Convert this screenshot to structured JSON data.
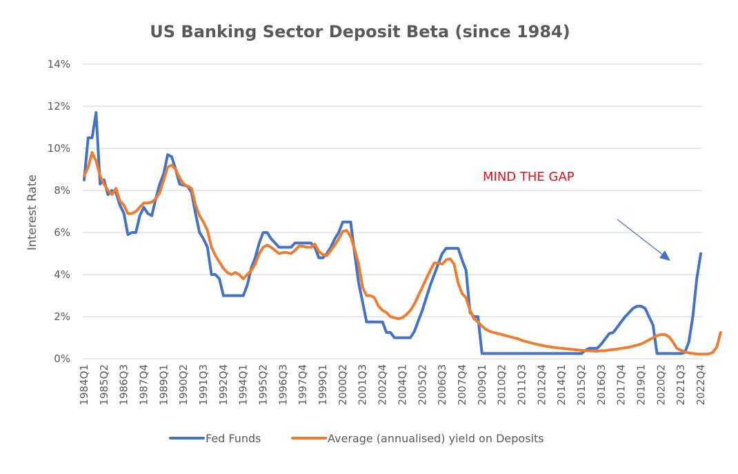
{
  "chart_data": {
    "type": "line",
    "title": "US Banking Sector Deposit Beta (since 1984)",
    "xlabel": "",
    "ylabel": "Interest Rate",
    "ylim": [
      0,
      14
    ],
    "y_ticks": [
      "0%",
      "2%",
      "4%",
      "6%",
      "8%",
      "10%",
      "12%",
      "14%"
    ],
    "y_tick_values": [
      0,
      2,
      4,
      6,
      8,
      10,
      12,
      14
    ],
    "grid": true,
    "legend_position": "bottom",
    "x_start": "1984Q1",
    "x_end": "2022Q4",
    "x_tick_labels": [
      "1984Q1",
      "1985Q2",
      "1986Q3",
      "1987Q4",
      "1989Q1",
      "1990Q2",
      "1991Q3",
      "1992Q4",
      "1994Q1",
      "1995Q2",
      "1996Q3",
      "1997Q4",
      "1999Q1",
      "2000Q2",
      "2001Q3",
      "2002Q4",
      "2004Q1",
      "2005Q2",
      "2006Q3",
      "2007Q4",
      "2009Q1",
      "2010Q2",
      "2011Q3",
      "2012Q4",
      "2014Q1",
      "2015Q2",
      "2016Q3",
      "2017Q4",
      "2019Q1",
      "2020Q2",
      "2021Q3",
      "2022Q4"
    ],
    "x_tick_every": 5,
    "annotation": "MIND THE GAP",
    "series": [
      {
        "name": "Fed Funds",
        "color": "#4472c4",
        "values": [
          8.5,
          10.5,
          10.5,
          11.7,
          8.3,
          8.5,
          7.8,
          8.0,
          7.9,
          7.3,
          6.9,
          5.9,
          6.0,
          6.0,
          6.8,
          7.2,
          6.9,
          6.8,
          7.6,
          8.3,
          8.8,
          9.7,
          9.6,
          9.0,
          8.3,
          8.25,
          8.2,
          7.9,
          6.9,
          6.0,
          5.7,
          5.3,
          4.0,
          4.0,
          3.8,
          3.0,
          3.0,
          3.0,
          3.0,
          3.0,
          3.0,
          3.5,
          4.3,
          4.8,
          5.5,
          6.0,
          6.0,
          5.7,
          5.5,
          5.3,
          5.3,
          5.3,
          5.3,
          5.5,
          5.5,
          5.5,
          5.5,
          5.5,
          5.3,
          4.8,
          4.8,
          5.0,
          5.3,
          5.7,
          6.0,
          6.5,
          6.5,
          6.5,
          5.0,
          3.6,
          2.7,
          1.75,
          1.75,
          1.75,
          1.75,
          1.75,
          1.25,
          1.25,
          1.0,
          1.0,
          1.0,
          1.0,
          1.0,
          1.3,
          1.8,
          2.3,
          2.9,
          3.5,
          4.0,
          4.5,
          5.0,
          5.25,
          5.25,
          5.25,
          5.25,
          4.7,
          4.2,
          2.2,
          2.0,
          2.0,
          0.25,
          0.25,
          0.25,
          0.25,
          0.25,
          0.25,
          0.25,
          0.25,
          0.25,
          0.25,
          0.25,
          0.25,
          0.25,
          0.25,
          0.25,
          0.25,
          0.25,
          0.25,
          0.25,
          0.25,
          0.25,
          0.25,
          0.25,
          0.25,
          0.25,
          0.25,
          0.4,
          0.5,
          0.5,
          0.5,
          0.7,
          0.95,
          1.2,
          1.25,
          1.5,
          1.75,
          2.0,
          2.2,
          2.4,
          2.5,
          2.5,
          2.4,
          2.0,
          1.6,
          0.25,
          0.25,
          0.25,
          0.25,
          0.25,
          0.25,
          0.25,
          0.3,
          0.8,
          2.0,
          3.8,
          5.0
        ]
      },
      {
        "name": "Average (annualised) yield on Deposits",
        "color": "#ed7d31",
        "values": [
          8.7,
          9.1,
          9.8,
          9.4,
          8.7,
          8.3,
          8.0,
          7.8,
          8.1,
          7.5,
          7.3,
          6.9,
          6.9,
          7.0,
          7.2,
          7.4,
          7.4,
          7.45,
          7.6,
          7.9,
          8.5,
          9.1,
          9.2,
          9.0,
          8.6,
          8.3,
          8.2,
          8.1,
          7.3,
          6.8,
          6.5,
          6.1,
          5.3,
          4.9,
          4.6,
          4.3,
          4.1,
          4.0,
          4.1,
          4.0,
          3.8,
          4.0,
          4.2,
          4.5,
          5.0,
          5.3,
          5.4,
          5.3,
          5.15,
          5.0,
          5.05,
          5.05,
          5.0,
          5.15,
          5.35,
          5.35,
          5.3,
          5.3,
          5.45,
          5.1,
          4.95,
          4.9,
          5.15,
          5.4,
          5.7,
          6.05,
          6.1,
          5.8,
          5.2,
          4.5,
          3.4,
          3.0,
          3.0,
          2.9,
          2.5,
          2.3,
          2.2,
          2.0,
          1.95,
          1.9,
          1.95,
          2.1,
          2.3,
          2.6,
          3.0,
          3.4,
          3.8,
          4.2,
          4.55,
          4.55,
          4.5,
          4.7,
          4.75,
          4.5,
          3.6,
          3.1,
          2.9,
          2.3,
          1.9,
          1.75,
          1.55,
          1.4,
          1.3,
          1.25,
          1.2,
          1.15,
          1.1,
          1.05,
          1.0,
          0.95,
          0.88,
          0.82,
          0.77,
          0.72,
          0.68,
          0.64,
          0.6,
          0.57,
          0.54,
          0.52,
          0.5,
          0.48,
          0.46,
          0.44,
          0.42,
          0.4,
          0.38,
          0.38,
          0.37,
          0.36,
          0.38,
          0.38,
          0.42,
          0.44,
          0.46,
          0.5,
          0.52,
          0.55,
          0.6,
          0.65,
          0.7,
          0.8,
          0.9,
          1.0,
          1.1,
          1.15,
          1.15,
          1.05,
          0.8,
          0.5,
          0.4,
          0.33,
          0.28,
          0.25,
          0.23,
          0.22,
          0.22,
          0.23,
          0.3,
          0.55,
          1.25
        ]
      }
    ]
  }
}
